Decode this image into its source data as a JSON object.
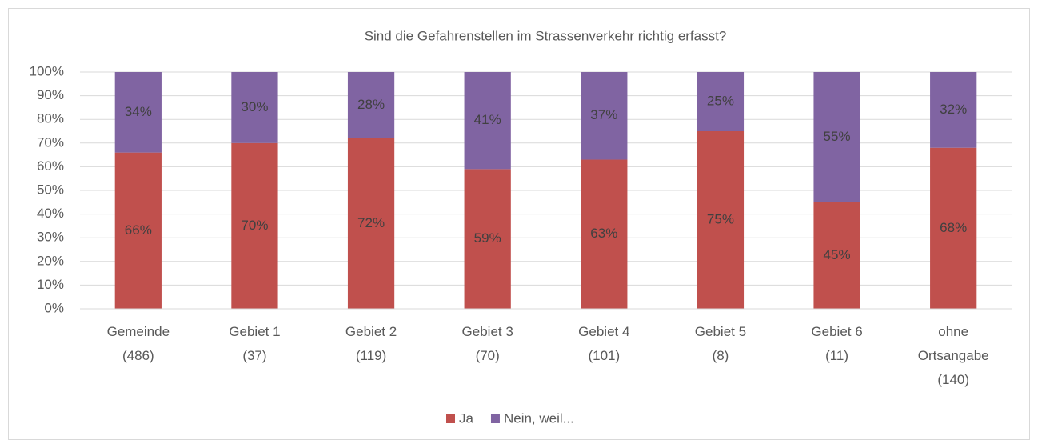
{
  "chart_data": {
    "type": "stacked_bar",
    "title": "Sind die Gefahrenstellen im Strassenverkehr richtig erfasst?",
    "categories": [
      "Gemeinde\n(486)",
      "Gebiet 1\n(37)",
      "Gebiet 2\n(119)",
      "Gebiet 3\n(70)",
      "Gebiet 4\n(101)",
      "Gebiet 5\n(8)",
      "Gebiet 6\n(11)",
      "ohne\nOrtsangabe\n(140)"
    ],
    "series": [
      {
        "name": "Ja",
        "color": "#c0504d",
        "values": [
          66,
          70,
          72,
          59,
          63,
          75,
          45,
          68
        ],
        "value_labels": [
          "66%",
          "70%",
          "72%",
          "59%",
          "63%",
          "75%",
          "45%",
          "68%"
        ]
      },
      {
        "name": "Nein, weil...",
        "color": "#8064a2",
        "values": [
          34,
          30,
          28,
          41,
          37,
          25,
          55,
          32
        ],
        "value_labels": [
          "34%",
          "30%",
          "28%",
          "41%",
          "37%",
          "25%",
          "55%",
          "32%"
        ]
      }
    ],
    "ylim": [
      0,
      100
    ],
    "yticks": [
      {
        "value": 0,
        "label": "0%"
      },
      {
        "value": 10,
        "label": "10%"
      },
      {
        "value": 20,
        "label": "20%"
      },
      {
        "value": 30,
        "label": "30%"
      },
      {
        "value": 40,
        "label": "40%"
      },
      {
        "value": 50,
        "label": "50%"
      },
      {
        "value": 60,
        "label": "60%"
      },
      {
        "value": 70,
        "label": "70%"
      },
      {
        "value": 80,
        "label": "80%"
      },
      {
        "value": 90,
        "label": "90%"
      },
      {
        "value": 100,
        "label": "100%"
      }
    ],
    "grid": true,
    "legend": "bottom"
  }
}
